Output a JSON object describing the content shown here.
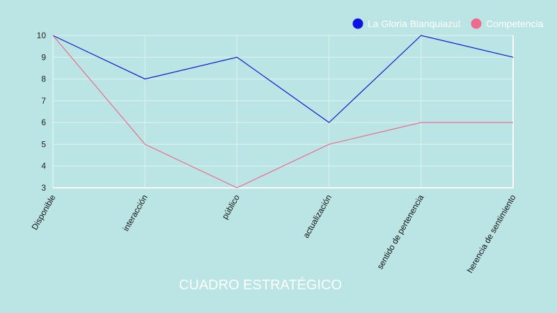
{
  "chart_data": {
    "type": "line",
    "title": "CUADRO ESTRATÉGICO",
    "categories": [
      "Disponible",
      "interacción",
      "público",
      "actualización",
      "sentido de pertenencia",
      "herencia de sentimiento"
    ],
    "series": [
      {
        "name": "La Gloria Blanquiazul",
        "color": "#0a14e6",
        "values": [
          10,
          8,
          9,
          6,
          10,
          9
        ]
      },
      {
        "name": "Competencia",
        "color": "#ee6b8f",
        "values": [
          10,
          5,
          3,
          5,
          6,
          6
        ]
      }
    ],
    "yticks": [
      3,
      4,
      5,
      6,
      7,
      8,
      9,
      10
    ],
    "ylim": [
      3,
      10
    ],
    "grid": true,
    "legend_position": "top-right",
    "background": "#bbe5e4"
  }
}
